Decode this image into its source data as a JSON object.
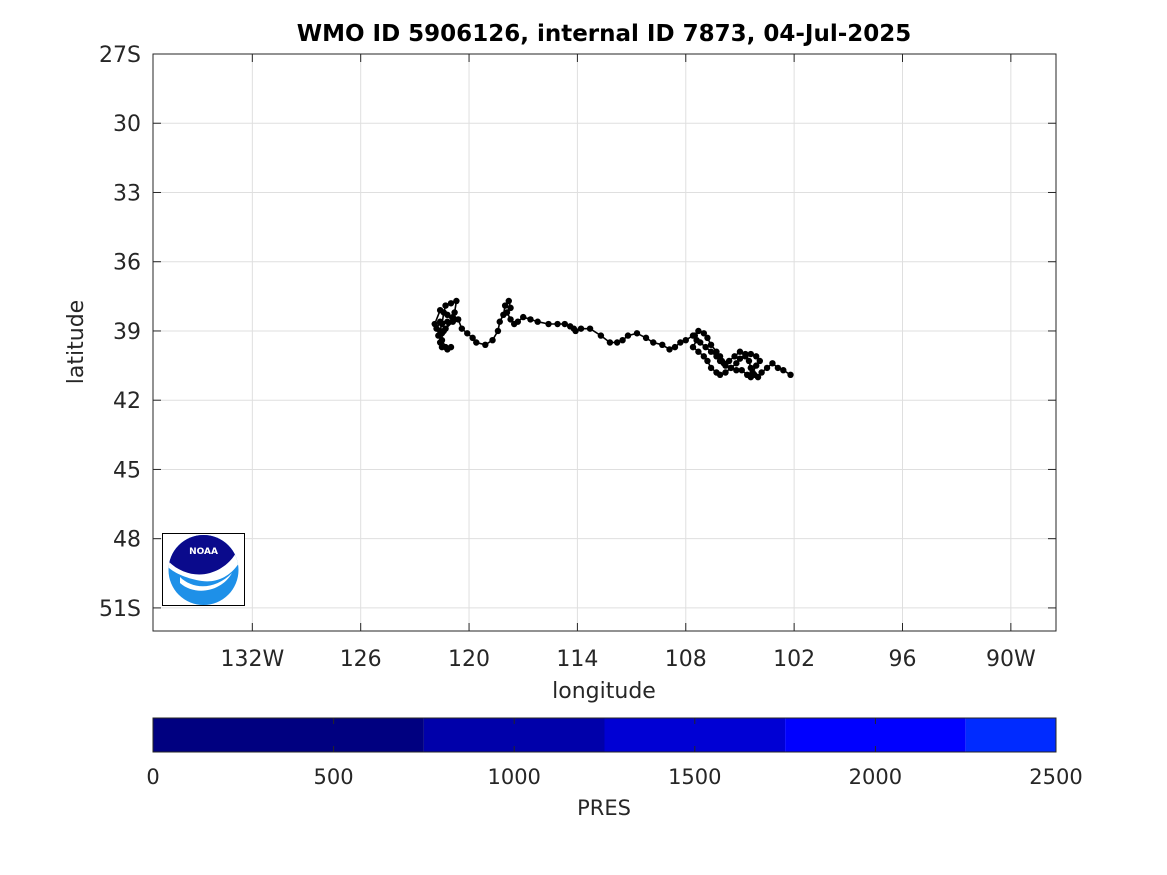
{
  "chart_data": [
    {
      "type": "scatter",
      "title": "WMO ID 5906126, internal ID 7873, 04-Jul-2025",
      "xlabel": "longitude",
      "ylabel": "latitude",
      "xlim": [
        -137.5,
        -87.5
      ],
      "ylim": [
        -52,
        -27
      ],
      "x_ticks": [
        -132,
        -126,
        -120,
        -114,
        -108,
        -102,
        -96,
        -90
      ],
      "x_tick_labels": [
        "132W",
        "126",
        "120",
        "114",
        "108",
        "102",
        "96",
        "90W"
      ],
      "y_ticks": [
        -27,
        -30,
        -33,
        -36,
        -39,
        -42,
        -45,
        -48,
        -51
      ],
      "y_tick_labels": [
        "27S",
        "30",
        "33",
        "36",
        "39",
        "42",
        "45",
        "48",
        "51S"
      ],
      "grid": true,
      "marker_color": "#000000",
      "series": [
        {
          "values": [
            [
              -121.7,
              -39.2
            ],
            [
              -121.5,
              -38.7
            ],
            [
              -121.4,
              -38.2
            ],
            [
              -121.3,
              -37.9
            ],
            [
              -121.0,
              -37.8
            ],
            [
              -120.7,
              -37.7
            ],
            [
              -120.8,
              -38.2
            ],
            [
              -120.8,
              -38.5
            ],
            [
              -121.2,
              -38.6
            ],
            [
              -121.6,
              -38.6
            ],
            [
              -121.8,
              -38.9
            ],
            [
              -121.6,
              -39.0
            ],
            [
              -121.9,
              -38.7
            ],
            [
              -121.6,
              -38.1
            ],
            [
              -121.2,
              -38.3
            ],
            [
              -120.9,
              -38.6
            ],
            [
              -121.3,
              -38.9
            ],
            [
              -121.5,
              -39.1
            ],
            [
              -121.5,
              -39.4
            ],
            [
              -121.3,
              -39.7
            ],
            [
              -121.0,
              -39.7
            ],
            [
              -121.2,
              -39.8
            ],
            [
              -121.5,
              -39.7
            ],
            [
              -121.6,
              -39.5
            ],
            [
              -121.4,
              -39.0
            ],
            [
              -120.9,
              -38.4
            ],
            [
              -120.6,
              -38.5
            ],
            [
              -120.4,
              -38.9
            ],
            [
              -120.1,
              -39.1
            ],
            [
              -119.8,
              -39.3
            ],
            [
              -119.6,
              -39.5
            ],
            [
              -119.1,
              -39.6
            ],
            [
              -118.7,
              -39.4
            ],
            [
              -118.4,
              -39.0
            ],
            [
              -118.3,
              -38.6
            ],
            [
              -118.1,
              -38.3
            ],
            [
              -118.0,
              -37.9
            ],
            [
              -117.8,
              -37.7
            ],
            [
              -117.7,
              -38.0
            ],
            [
              -117.9,
              -38.2
            ],
            [
              -117.7,
              -38.5
            ],
            [
              -117.5,
              -38.7
            ],
            [
              -117.3,
              -38.6
            ],
            [
              -117.0,
              -38.4
            ],
            [
              -116.6,
              -38.5
            ],
            [
              -116.2,
              -38.6
            ],
            [
              -115.6,
              -38.7
            ],
            [
              -115.1,
              -38.7
            ],
            [
              -114.7,
              -38.7
            ],
            [
              -114.4,
              -38.8
            ],
            [
              -114.2,
              -38.9
            ],
            [
              -114.1,
              -39.0
            ],
            [
              -113.8,
              -38.9
            ],
            [
              -113.3,
              -38.9
            ],
            [
              -112.7,
              -39.2
            ],
            [
              -112.2,
              -39.5
            ],
            [
              -111.8,
              -39.5
            ],
            [
              -111.5,
              -39.4
            ],
            [
              -111.2,
              -39.2
            ],
            [
              -110.7,
              -39.1
            ],
            [
              -110.2,
              -39.3
            ],
            [
              -109.8,
              -39.5
            ],
            [
              -109.3,
              -39.6
            ],
            [
              -108.9,
              -39.8
            ],
            [
              -108.6,
              -39.7
            ],
            [
              -108.3,
              -39.5
            ],
            [
              -108.0,
              -39.4
            ],
            [
              -107.6,
              -39.2
            ],
            [
              -107.4,
              -39.4
            ],
            [
              -107.6,
              -39.7
            ],
            [
              -107.3,
              -39.9
            ],
            [
              -107.0,
              -40.1
            ],
            [
              -106.8,
              -40.3
            ],
            [
              -106.6,
              -40.6
            ],
            [
              -106.3,
              -40.8
            ],
            [
              -106.1,
              -40.9
            ],
            [
              -105.8,
              -40.8
            ],
            [
              -105.5,
              -40.6
            ],
            [
              -105.2,
              -40.4
            ],
            [
              -105.0,
              -40.2
            ],
            [
              -104.7,
              -40.0
            ],
            [
              -104.4,
              -40.0
            ],
            [
              -104.1,
              -40.1
            ],
            [
              -103.9,
              -40.3
            ],
            [
              -104.1,
              -40.5
            ],
            [
              -104.3,
              -40.8
            ],
            [
              -104.4,
              -41.0
            ],
            [
              -104.6,
              -40.9
            ],
            [
              -104.9,
              -40.7
            ],
            [
              -105.2,
              -40.7
            ],
            [
              -105.5,
              -40.6
            ],
            [
              -105.8,
              -40.5
            ],
            [
              -106.0,
              -40.3
            ],
            [
              -106.1,
              -40.1
            ],
            [
              -106.3,
              -39.9
            ],
            [
              -106.6,
              -39.6
            ],
            [
              -106.8,
              -39.3
            ],
            [
              -107.0,
              -39.1
            ],
            [
              -107.3,
              -39.0
            ],
            [
              -107.5,
              -39.2
            ],
            [
              -107.2,
              -39.5
            ],
            [
              -106.9,
              -39.7
            ],
            [
              -106.6,
              -39.9
            ],
            [
              -106.3,
              -40.1
            ],
            [
              -106.1,
              -40.3
            ],
            [
              -105.9,
              -40.4
            ],
            [
              -105.6,
              -40.3
            ],
            [
              -105.3,
              -40.1
            ],
            [
              -105.0,
              -39.9
            ],
            [
              -104.7,
              -40.1
            ],
            [
              -104.5,
              -40.3
            ],
            [
              -104.4,
              -40.6
            ],
            [
              -104.2,
              -40.9
            ],
            [
              -104.0,
              -41.0
            ],
            [
              -103.8,
              -40.8
            ],
            [
              -103.5,
              -40.6
            ],
            [
              -103.2,
              -40.4
            ],
            [
              -102.9,
              -40.6
            ],
            [
              -102.6,
              -40.7
            ],
            [
              -102.2,
              -40.9
            ]
          ]
        }
      ]
    },
    {
      "type": "colorbar",
      "xlabel": "PRES",
      "xlim": [
        0,
        2500
      ],
      "x_ticks": [
        0,
        500,
        1000,
        1500,
        2000,
        2500
      ],
      "x_tick_labels": [
        "0",
        "500",
        "1000",
        "1500",
        "2000",
        "2500"
      ],
      "bands": [
        {
          "from": 0,
          "to": 750,
          "color": "#000080"
        },
        {
          "from": 750,
          "to": 1250,
          "color": "#0000AA"
        },
        {
          "from": 1250,
          "to": 1750,
          "color": "#0000D4"
        },
        {
          "from": 1750,
          "to": 2250,
          "color": "#0000FF"
        },
        {
          "from": 2250,
          "to": 2500,
          "color": "#002BFF"
        }
      ]
    }
  ],
  "logo": {
    "text": "NOAA",
    "icon": "noaa-logo-icon",
    "colors": {
      "navy": "#0A0A8C",
      "sky": "#1E90E8"
    }
  }
}
